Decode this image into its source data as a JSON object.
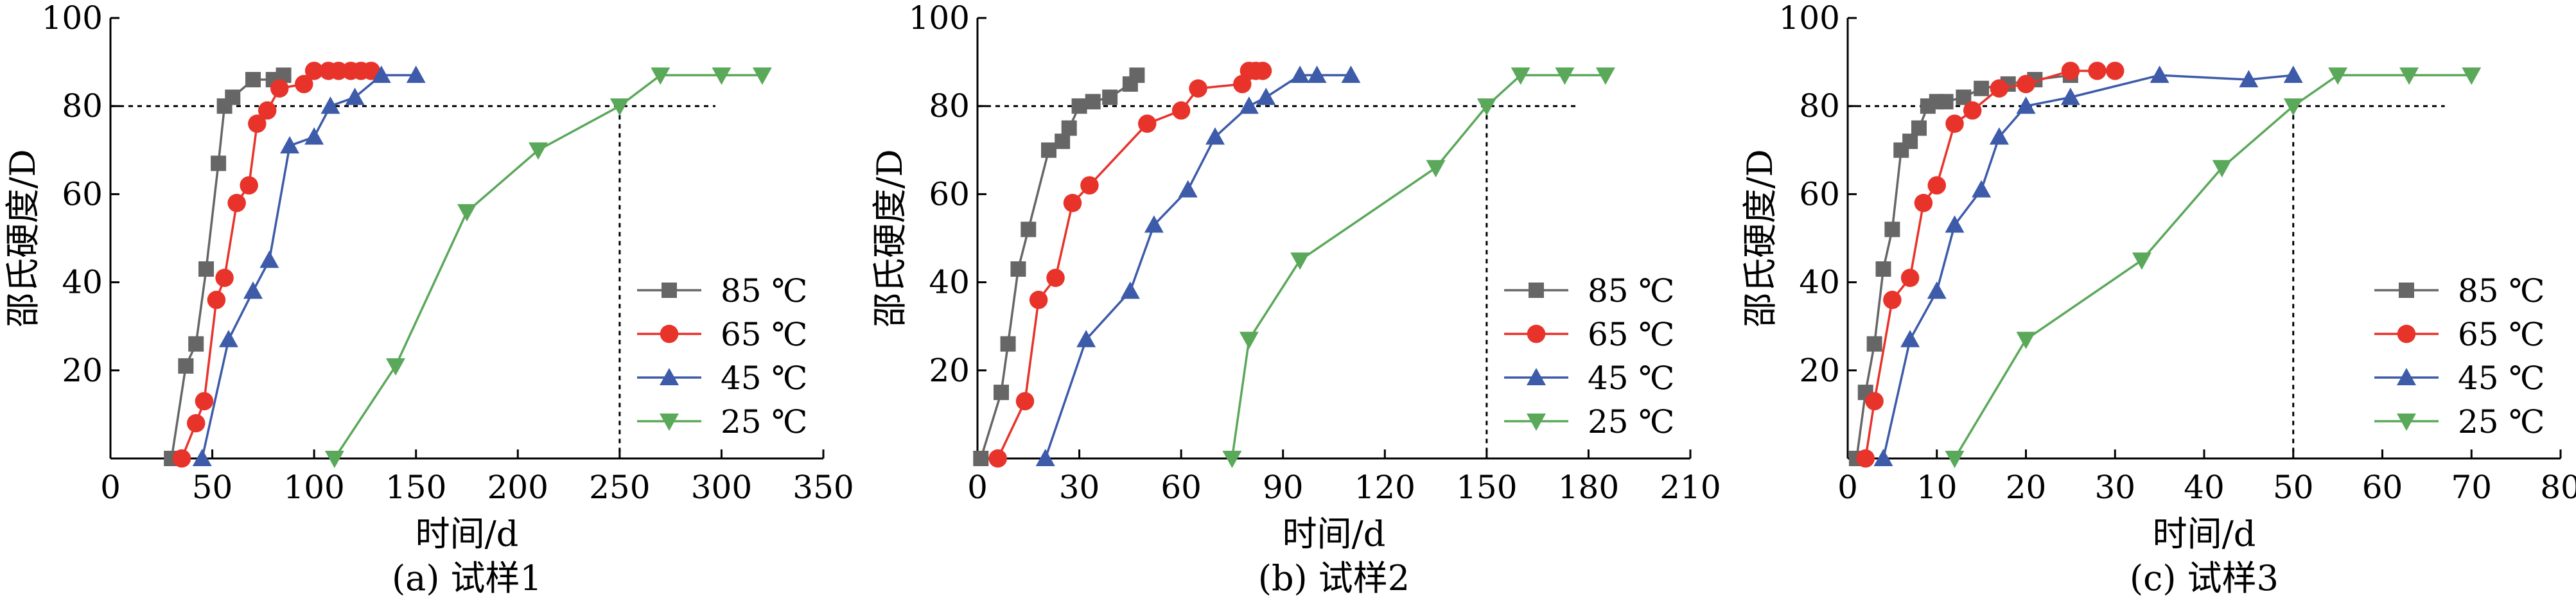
{
  "chart_data": [
    {
      "type": "line",
      "caption": "(a) 试样1",
      "xlabel": "时间/d",
      "ylabel": "邵氏硬度/D",
      "xlim": [
        0,
        350
      ],
      "ylim": [
        0,
        100
      ],
      "xticks": [
        0,
        50,
        100,
        150,
        200,
        250,
        300,
        350
      ],
      "yticks": [
        20,
        40,
        60,
        80,
        100
      ],
      "reference": {
        "y": 80,
        "x": 250,
        "x_end": 297
      },
      "series": [
        {
          "name": "85 ℃",
          "color": "#666666",
          "marker": "square",
          "x": [
            30,
            37,
            42,
            47,
            53,
            56,
            60,
            70,
            80,
            85
          ],
          "y": [
            0,
            21,
            26,
            43,
            67,
            80,
            82,
            86,
            86,
            87
          ]
        },
        {
          "name": "65 ℃",
          "color": "#e8332b",
          "marker": "circle",
          "x": [
            35,
            42,
            46,
            52,
            56,
            62,
            68,
            72,
            77,
            83,
            95,
            100,
            107,
            112,
            118,
            123,
            128
          ],
          "y": [
            0,
            8,
            13,
            36,
            41,
            58,
            62,
            76,
            79,
            84,
            85,
            88,
            88,
            88,
            88,
            88,
            88
          ]
        },
        {
          "name": "45 ℃",
          "color": "#3d5ba9",
          "marker": "triangle-up",
          "x": [
            45,
            58,
            70,
            78,
            88,
            100,
            108,
            120,
            133,
            150
          ],
          "y": [
            0,
            27,
            38,
            45,
            71,
            73,
            80,
            82,
            87,
            87
          ]
        },
        {
          "name": "25 ℃",
          "color": "#5aa85a",
          "marker": "triangle-down",
          "x": [
            110,
            140,
            175,
            210,
            250,
            270,
            300,
            320
          ],
          "y": [
            0,
            21,
            56,
            70,
            80,
            87,
            87,
            87
          ]
        }
      ]
    },
    {
      "type": "line",
      "caption": "(b) 试样2",
      "xlabel": "时间/d",
      "ylabel": "邵氏硬度/D",
      "xlim": [
        0,
        210
      ],
      "ylim": [
        0,
        100
      ],
      "xticks": [
        0,
        30,
        60,
        90,
        120,
        150,
        180,
        210
      ],
      "yticks": [
        20,
        40,
        60,
        80,
        100
      ],
      "reference": {
        "y": 80,
        "x": 150,
        "x_end": 177
      },
      "series": [
        {
          "name": "85 ℃",
          "color": "#666666",
          "marker": "square",
          "x": [
            1,
            7,
            9,
            12,
            15,
            21,
            25,
            27,
            30,
            34,
            39,
            45,
            47
          ],
          "y": [
            0,
            15,
            26,
            43,
            52,
            70,
            72,
            75,
            80,
            81,
            82,
            85,
            87
          ]
        },
        {
          "name": "65 ℃",
          "color": "#e8332b",
          "marker": "circle",
          "x": [
            6,
            14,
            18,
            23,
            28,
            33,
            50,
            60,
            65,
            78,
            80,
            82,
            84
          ],
          "y": [
            0,
            13,
            36,
            41,
            58,
            62,
            76,
            79,
            84,
            85,
            88,
            88,
            88
          ]
        },
        {
          "name": "45 ℃",
          "color": "#3d5ba9",
          "marker": "triangle-up",
          "x": [
            20,
            32,
            45,
            52,
            62,
            70,
            80,
            85,
            95,
            100,
            110
          ],
          "y": [
            0,
            27,
            38,
            53,
            61,
            73,
            80,
            82,
            87,
            87,
            87
          ]
        },
        {
          "name": "25 ℃",
          "color": "#5aa85a",
          "marker": "triangle-down",
          "x": [
            75,
            80,
            95,
            135,
            150,
            160,
            173,
            185
          ],
          "y": [
            0,
            27,
            45,
            66,
            80,
            87,
            87,
            87
          ]
        }
      ]
    },
    {
      "type": "line",
      "caption": "(c) 试样3",
      "xlabel": "时间/d",
      "ylabel": "邵氏硬度/D",
      "xlim": [
        0,
        80
      ],
      "ylim": [
        0,
        100
      ],
      "xticks": [
        0,
        10,
        20,
        30,
        40,
        50,
        60,
        70,
        80
      ],
      "yticks": [
        20,
        40,
        60,
        80,
        100
      ],
      "reference": {
        "y": 80,
        "x": 50,
        "x_end": 67
      },
      "series": [
        {
          "name": "85 ℃",
          "color": "#666666",
          "marker": "square",
          "x": [
            1,
            2,
            3,
            4,
            5,
            6,
            7,
            8,
            9,
            10,
            11,
            13,
            15,
            18,
            21,
            25
          ],
          "y": [
            0,
            15,
            26,
            43,
            52,
            70,
            72,
            75,
            80,
            81,
            81,
            82,
            84,
            85,
            86,
            87
          ]
        },
        {
          "name": "65 ℃",
          "color": "#e8332b",
          "marker": "circle",
          "x": [
            2,
            3,
            5,
            7,
            8.5,
            10,
            12,
            14,
            17,
            20,
            25,
            28,
            30
          ],
          "y": [
            0,
            13,
            36,
            41,
            58,
            62,
            76,
            79,
            84,
            85,
            88,
            88,
            88
          ]
        },
        {
          "name": "45 ℃",
          "color": "#3d5ba9",
          "marker": "triangle-up",
          "x": [
            4,
            7,
            10,
            12,
            15,
            17,
            20,
            25,
            35,
            45,
            50
          ],
          "y": [
            0,
            27,
            38,
            53,
            61,
            73,
            80,
            82,
            87,
            86,
            87
          ]
        },
        {
          "name": "25 ℃",
          "color": "#5aa85a",
          "marker": "triangle-down",
          "x": [
            12,
            20,
            33,
            42,
            50,
            55,
            63,
            70
          ],
          "y": [
            0,
            27,
            45,
            66,
            80,
            87,
            87,
            87
          ]
        }
      ]
    }
  ]
}
